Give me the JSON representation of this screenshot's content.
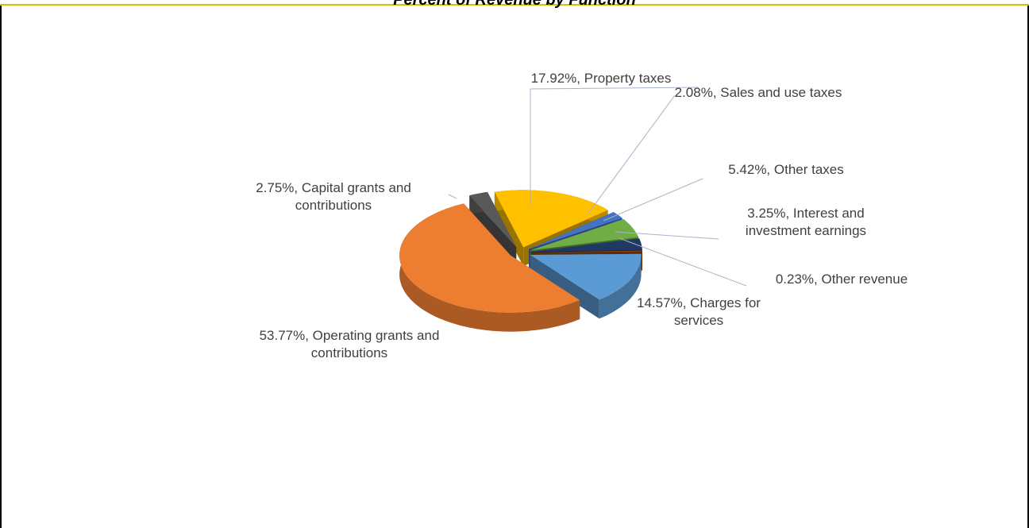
{
  "chart_data": {
    "type": "pie3d",
    "title": "Percent of Revenue by Function",
    "values": [
      17.92,
      2.08,
      5.42,
      3.25,
      0.23,
      14.57,
      53.77,
      2.75
    ],
    "value_labels": [
      "17.92%, Property taxes",
      "2.08%, Sales and use taxes",
      "5.42%, Other taxes",
      "3.25%, Interest and investment earnings",
      "0.23%, Other revenue",
      "14.57%, Charges for services",
      "53.77%, Operating grants and contributions",
      "2.75%, Capital grants and contributions"
    ],
    "colors": [
      "#ffc000",
      "#4472c4",
      "#70ad47",
      "#1f3864",
      "#9e480e",
      "#5b9bd5",
      "#ed7d31",
      "#595959"
    ]
  }
}
